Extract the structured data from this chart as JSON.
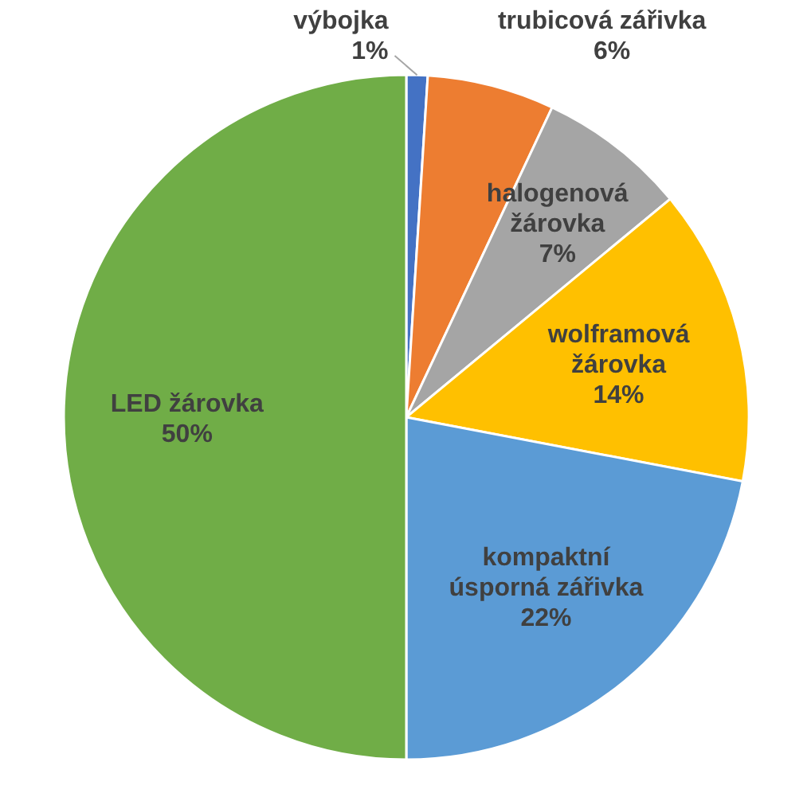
{
  "chart_data": {
    "type": "pie",
    "categories": [
      "výbojka",
      "trubicová zářivka",
      "halogenová žárovka",
      "wolframová žárovka",
      "kompaktní úsporná zářivka",
      "LED žárovka"
    ],
    "values": [
      1,
      6,
      7,
      14,
      22,
      50
    ],
    "value_labels": [
      "1%",
      "6%",
      "7%",
      "14%",
      "22%",
      "50%"
    ],
    "colors": [
      "#4472c4",
      "#ed7d31",
      "#a5a5a5",
      "#ffc000",
      "#5b9bd5",
      "#70ad47"
    ]
  }
}
